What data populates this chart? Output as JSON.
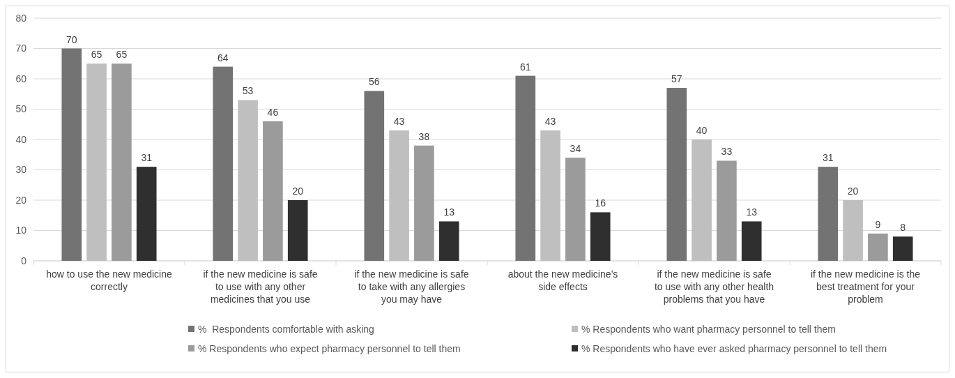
{
  "chart_data": {
    "type": "bar",
    "categories": [
      "how to use the new medicine correctly",
      "if the new medicine is safe to use with any other medicines that you use",
      "if the new medicine is safe to take with any allergies you may have",
      "about the new medicine’s side effects",
      "if the new medicine is safe to use with any other health problems that you have",
      "if the new medicine is the best treatment for your problem"
    ],
    "series": [
      {
        "name": "%  Respondents comfortable with asking",
        "color": "#737373",
        "values": [
          70,
          64,
          56,
          61,
          57,
          31
        ]
      },
      {
        "name": "% Respondents who want pharmacy personnel to tell them",
        "color": "#bfbfbf",
        "values": [
          65,
          53,
          43,
          43,
          40,
          20
        ]
      },
      {
        "name": "% Respondents who expect pharmacy personnel to tell them",
        "color": "#9b9b9b",
        "values": [
          65,
          46,
          38,
          34,
          33,
          9
        ]
      },
      {
        "name": "% Respondents who have ever asked pharmacy personnel to tell them",
        "color": "#2f2f2f",
        "values": [
          31,
          20,
          13,
          16,
          13,
          8
        ]
      }
    ],
    "ylim": [
      0,
      80
    ],
    "yticks": [
      0,
      10,
      20,
      30,
      40,
      50,
      60,
      70,
      80
    ],
    "grid": "y",
    "data_labels": true,
    "legend": "bottom"
  }
}
